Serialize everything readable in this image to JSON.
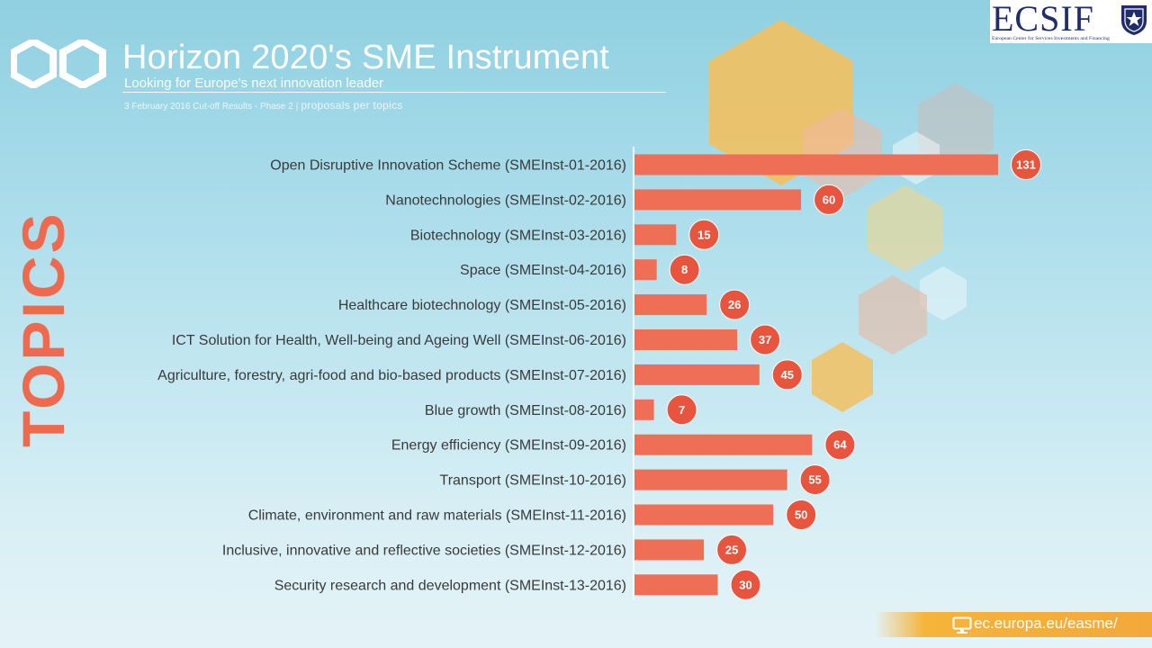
{
  "header": {
    "title": "Horizon 2020's SME Instrument",
    "subtitle": "Looking for Europe's next innovation leader",
    "cutoff": "3 February 2016 Cut-off Results - Phase 2",
    "cutoff_separator": "|",
    "cutoff_tag": "proposals per topics"
  },
  "brand": {
    "name": "ECSIF",
    "tagline": "European Center for Services Investments and Financing"
  },
  "side_label": "TOPICS",
  "footer": {
    "url": "ec.europa.eu/easme/",
    "icon": "monitor-icon"
  },
  "colors": {
    "bar": "#ee6f55",
    "badge": "#e8553f",
    "accent_orange": "#f6b43a"
  },
  "chart_data": {
    "type": "bar",
    "orientation": "horizontal",
    "title": "Horizon 2020's SME Instrument",
    "categories": [
      "Open Disruptive Innovation Scheme (SMEInst-01-2016)",
      "Nanotechnologies (SMEInst-02-2016)",
      "Biotechnology (SMEInst-03-2016)",
      "Space (SMEInst-04-2016)",
      "Healthcare biotechnology (SMEInst-05-2016)",
      "ICT Solution for Health, Well-being and Ageing Well (SMEInst-06-2016)",
      "Agriculture, forestry, agri-food and bio-based products (SMEInst-07-2016)",
      "Blue growth (SMEInst-08-2016)",
      "Energy efficiency (SMEInst-09-2016)",
      "Transport (SMEInst-10-2016)",
      "Climate, environment and raw materials (SMEInst-11-2016)",
      "Inclusive, innovative and reflective societies (SMEInst-12-2016)",
      "Security research and development (SMEInst-13-2016)"
    ],
    "values": [
      131,
      60,
      15,
      8,
      26,
      37,
      45,
      7,
      64,
      55,
      50,
      25,
      30
    ],
    "xlim": [
      0,
      131
    ],
    "grid": false,
    "legend": "none",
    "data_labels": "circle badges at bar ends"
  }
}
